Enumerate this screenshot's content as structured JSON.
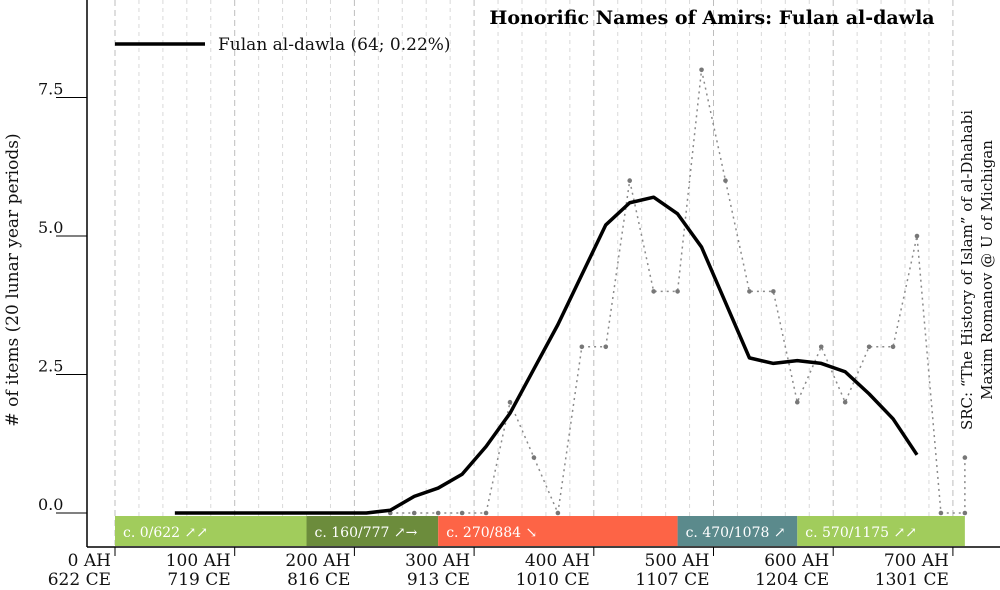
{
  "chart_data": {
    "type": "line",
    "title": "Honorific Names of Amirs: Fulan al-dawla",
    "ylabel": "# of items (20 lunar year periods)",
    "source_lines": [
      "SRC: “The History of Islam” of al-Dhahabi",
      "Maxim Romanov @ U of Michigan"
    ],
    "legend": "Fulan al-dawla (64; 0.22%)",
    "xlim": [
      0,
      700
    ],
    "ylim": [
      0,
      8
    ],
    "yticks": [
      {
        "value": 0,
        "label": "0.0"
      },
      {
        "value": 2.5,
        "label": "2.5"
      },
      {
        "value": 5,
        "label": "5.0"
      },
      {
        "value": 7.5,
        "label": "7.5"
      }
    ],
    "xticks": [
      {
        "value": 0,
        "ah": "0 AH",
        "ce": "622 CE"
      },
      {
        "value": 100,
        "ah": "100 AH",
        "ce": "719 CE"
      },
      {
        "value": 200,
        "ah": "200 AH",
        "ce": "816 CE"
      },
      {
        "value": 300,
        "ah": "300 AH",
        "ce": "913 CE"
      },
      {
        "value": 400,
        "ah": "400 AH",
        "ce": "1010 CE"
      },
      {
        "value": 500,
        "ah": "500 AH",
        "ce": "1107 CE"
      },
      {
        "value": 600,
        "ah": "600 AH",
        "ce": "1204 CE"
      },
      {
        "value": 700,
        "ah": "700 AH",
        "ce": "1301 CE"
      }
    ],
    "series": [
      {
        "name": "Fulan al-dawla (64; 0.22%)",
        "style": "solid",
        "x": [
          50,
          70,
          90,
          110,
          130,
          150,
          170,
          190,
          210,
          230,
          250,
          270,
          290,
          310,
          330,
          350,
          370,
          390,
          410,
          430,
          450,
          470,
          490,
          510,
          530,
          550,
          570,
          590,
          610,
          630,
          650,
          670
        ],
        "y": [
          0,
          0,
          0,
          0,
          0,
          0,
          0,
          0,
          0,
          0.05,
          0.3,
          0.45,
          0.7,
          1.2,
          1.8,
          2.6,
          3.4,
          4.3,
          5.2,
          5.6,
          5.7,
          5.4,
          4.8,
          3.8,
          2.8,
          2.7,
          2.75,
          2.7,
          2.55,
          2.15,
          1.7,
          1.05
        ]
      },
      {
        "name": "raw counts",
        "style": "dotted",
        "x": [
          230,
          250,
          270,
          290,
          310,
          330,
          350,
          370,
          390,
          410,
          430,
          450,
          470,
          490,
          510,
          530,
          550,
          570,
          590,
          610,
          630,
          650,
          670,
          690,
          710
        ],
        "y": [
          0,
          0,
          0,
          0,
          0,
          2,
          1,
          0,
          3,
          3,
          6,
          4,
          4,
          8,
          6,
          4,
          4,
          2,
          3,
          2,
          3,
          3,
          5,
          0,
          0
        ]
      }
    ],
    "extra_points": [
      {
        "x": 710,
        "y": 1
      }
    ],
    "periods": [
      {
        "label": "c. 0/622 ↗↗",
        "start": 0,
        "end": 160,
        "color": "#a1cc5c"
      },
      {
        "label": "c. 160/777 ↗→",
        "start": 160,
        "end": 270,
        "color": "#6c8c3c"
      },
      {
        "label": "c. 270/884 ↘",
        "start": 270,
        "end": 470,
        "color": "#fd6446"
      },
      {
        "label": "c. 470/1078 ↗",
        "start": 470,
        "end": 570,
        "color": "#5b8a8c"
      },
      {
        "label": "c. 570/1175 ↗↗",
        "start": 570,
        "end": 710,
        "color": "#a1cc5c"
      }
    ]
  }
}
